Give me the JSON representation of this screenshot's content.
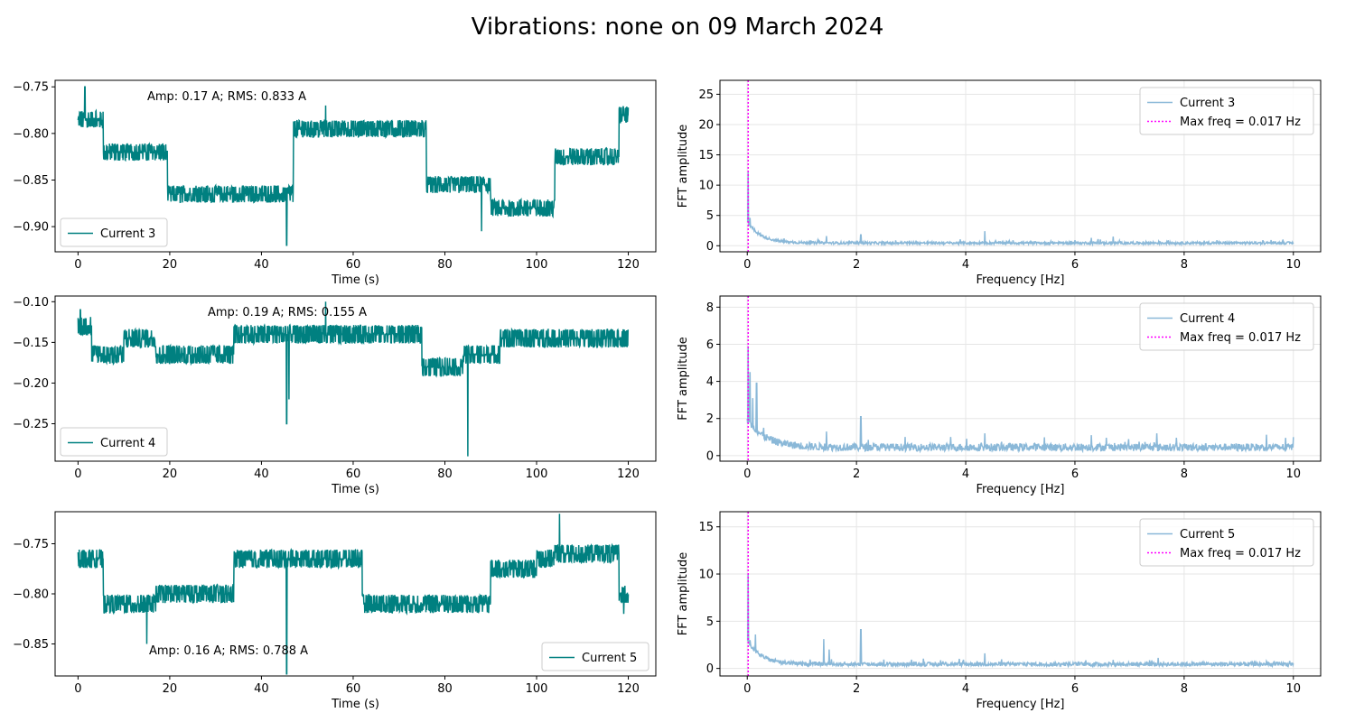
{
  "figure": {
    "title": "Vibrations: none on 09 March 2024",
    "colors": {
      "time_series": "#008080",
      "fft": "#8ab8d8",
      "max_freq": "#ff00ff",
      "grid": "#e6e6e6"
    }
  },
  "chart_data": [
    {
      "type": "line",
      "xlabel": "Time (s)",
      "ylabel": "",
      "xlim": [
        -5,
        126
      ],
      "ylim": [
        -0.927,
        -0.743
      ],
      "xticks": [
        0,
        20,
        40,
        60,
        80,
        100,
        120
      ],
      "yticks": [
        -0.75,
        -0.8,
        -0.85,
        -0.9
      ],
      "ytick_labels": [
        "−0.75",
        "−0.80",
        "−0.85",
        "−0.90"
      ],
      "grid": false,
      "legend": {
        "location": "lower-left",
        "entries": [
          "Current 3"
        ]
      },
      "annotation": "Amp: 0.17 A; RMS: 0.833 A",
      "series": [
        {
          "name": "Current 3",
          "color": "#008080",
          "x_range": [
            0,
            120
          ],
          "levels": [
            [
              0,
              5.5,
              -0.785
            ],
            [
              5.5,
              19.5,
              -0.82
            ],
            [
              19.5,
              47,
              -0.865
            ],
            [
              47,
              76,
              -0.795
            ],
            [
              76,
              90,
              -0.855
            ],
            [
              90,
              104,
              -0.88
            ],
            [
              104,
              118,
              -0.825
            ],
            [
              118,
              120,
              -0.78
            ]
          ],
          "noise": 0.014,
          "spikes": [
            [
              1.5,
              -0.75
            ],
            [
              45.5,
              -0.92
            ],
            [
              54,
              -0.77
            ],
            [
              88,
              -0.905
            ]
          ]
        }
      ]
    },
    {
      "type": "line",
      "xlabel": "Frequency [Hz]",
      "ylabel": "FFT amplitude",
      "xlim": [
        -0.5,
        10.5
      ],
      "ylim": [
        -1.0,
        27.3
      ],
      "xticks": [
        0,
        2,
        4,
        6,
        8,
        10
      ],
      "yticks": [
        0,
        5,
        10,
        15,
        20,
        25
      ],
      "grid": true,
      "legend": {
        "location": "top-right",
        "entries": [
          "Current 3",
          "Max freq = 0.017 Hz"
        ]
      },
      "series": [
        {
          "name": "Current 3",
          "color": "#8ab8d8",
          "x_range": [
            0,
            10
          ],
          "baseline": 0.45,
          "decay": {
            "amplitude": 3.5,
            "rate": 4
          },
          "peaks": [
            [
              0.02,
              12.2
            ],
            [
              0.05,
              4.6
            ],
            [
              0.1,
              3.2
            ],
            [
              0.15,
              1.8
            ],
            [
              1.45,
              1.6
            ],
            [
              2.08,
              1.8
            ],
            [
              4.35,
              2.4
            ],
            [
              6.3,
              1.3
            ],
            [
              6.7,
              1.5
            ],
            [
              8.6,
              0.9
            ]
          ]
        }
      ],
      "vline": {
        "x": 0.017,
        "label": "Max freq = 0.017 Hz",
        "color": "#ff00ff"
      }
    },
    {
      "type": "line",
      "xlabel": "Time (s)",
      "ylabel": "",
      "xlim": [
        -5,
        126
      ],
      "ylim": [
        -0.296,
        -0.093
      ],
      "xticks": [
        0,
        20,
        40,
        60,
        80,
        100,
        120
      ],
      "yticks": [
        -0.1,
        -0.15,
        -0.2,
        -0.25
      ],
      "ytick_labels": [
        "−0.10",
        "−0.15",
        "−0.20",
        "−0.25"
      ],
      "grid": false,
      "legend": {
        "location": "lower-left",
        "entries": [
          "Current 4"
        ]
      },
      "annotation": "Amp: 0.19 A;  RMS: 0.155 A",
      "series": [
        {
          "name": "Current 4",
          "color": "#008080",
          "x_range": [
            0,
            120
          ],
          "levels": [
            [
              0,
              3,
              -0.13
            ],
            [
              3,
              10,
              -0.165
            ],
            [
              10,
              17,
              -0.145
            ],
            [
              17,
              34,
              -0.165
            ],
            [
              34,
              75,
              -0.14
            ],
            [
              75,
              84,
              -0.18
            ],
            [
              84,
              92,
              -0.165
            ],
            [
              92,
              120,
              -0.145
            ]
          ],
          "noise": 0.018,
          "spikes": [
            [
              0.5,
              -0.11
            ],
            [
              45.5,
              -0.25
            ],
            [
              54,
              -0.1
            ],
            [
              85,
              -0.29
            ],
            [
              46,
              -0.22
            ]
          ]
        }
      ]
    },
    {
      "type": "line",
      "xlabel": "Frequency [Hz]",
      "ylabel": "FFT amplitude",
      "xlim": [
        -0.5,
        10.5
      ],
      "ylim": [
        -0.3,
        8.6
      ],
      "xticks": [
        0,
        2,
        4,
        6,
        8,
        10
      ],
      "yticks": [
        0,
        2,
        4,
        6,
        8
      ],
      "grid": true,
      "legend": {
        "location": "top-right",
        "entries": [
          "Current 4",
          "Max freq = 0.017 Hz"
        ]
      },
      "series": [
        {
          "name": "Current 4",
          "color": "#8ab8d8",
          "x_range": [
            0,
            10
          ],
          "baseline": 0.45,
          "decay": {
            "amplitude": 1.5,
            "rate": 3
          },
          "peaks": [
            [
              0.02,
              5.9
            ],
            [
              0.05,
              4.5
            ],
            [
              0.1,
              3.1
            ],
            [
              0.17,
              3.9
            ],
            [
              0.3,
              1.5
            ],
            [
              1.45,
              1.3
            ],
            [
              2.08,
              2.1
            ],
            [
              4.35,
              1.2
            ],
            [
              6.3,
              1.1
            ],
            [
              7.5,
              1.2
            ],
            [
              10.0,
              1.0
            ]
          ]
        }
      ],
      "vline": {
        "x": 0.017,
        "label": "Max freq = 0.017 Hz",
        "color": "#ff00ff"
      }
    },
    {
      "type": "line",
      "xlabel": "Time (s)",
      "ylabel": "",
      "xlim": [
        -5,
        126
      ],
      "ylim": [
        -0.882,
        -0.718
      ],
      "xticks": [
        0,
        20,
        40,
        60,
        80,
        100,
        120
      ],
      "yticks": [
        -0.75,
        -0.8,
        -0.85
      ],
      "ytick_labels": [
        "−0.75",
        "−0.80",
        "−0.85"
      ],
      "grid": false,
      "legend": {
        "location": "lower-right",
        "entries": [
          "Current 5"
        ]
      },
      "annotation": "Amp: 0.16 A; RMS: 0.788 A",
      "series": [
        {
          "name": "Current 5",
          "color": "#008080",
          "x_range": [
            0,
            120
          ],
          "levels": [
            [
              0,
              5.5,
              -0.765
            ],
            [
              5.5,
              17,
              -0.81
            ],
            [
              17,
              34,
              -0.8
            ],
            [
              34,
              62,
              -0.765
            ],
            [
              62,
              90,
              -0.81
            ],
            [
              90,
              100,
              -0.775
            ],
            [
              100,
              104,
              -0.765
            ],
            [
              104,
              118,
              -0.76
            ],
            [
              118,
              120,
              -0.8
            ]
          ],
          "noise": 0.014,
          "spikes": [
            [
              45.5,
              -0.88
            ],
            [
              105,
              -0.72
            ],
            [
              15,
              -0.85
            ],
            [
              119,
              -0.82
            ]
          ]
        }
      ]
    },
    {
      "type": "line",
      "xlabel": "Frequency [Hz]",
      "ylabel": "FFT amplitude",
      "xlim": [
        -0.5,
        10.5
      ],
      "ylim": [
        -0.8,
        16.6
      ],
      "xticks": [
        0,
        2,
        4,
        6,
        8,
        10
      ],
      "yticks": [
        0,
        5,
        10,
        15
      ],
      "grid": true,
      "legend": {
        "location": "top-right",
        "entries": [
          "Current 5",
          "Max freq = 0.017 Hz"
        ]
      },
      "series": [
        {
          "name": "Current 5",
          "color": "#8ab8d8",
          "x_range": [
            0,
            10
          ],
          "baseline": 0.45,
          "decay": {
            "amplitude": 2.5,
            "rate": 4
          },
          "peaks": [
            [
              0.02,
              10.0
            ],
            [
              0.05,
              3.0
            ],
            [
              0.15,
              3.6
            ],
            [
              1.4,
              3.1
            ],
            [
              1.5,
              2.0
            ],
            [
              2.08,
              4.1
            ],
            [
              4.35,
              1.6
            ],
            [
              6.7,
              0.9
            ]
          ]
        }
      ],
      "vline": {
        "x": 0.017,
        "label": "Max freq = 0.017 Hz",
        "color": "#ff00ff"
      }
    }
  ]
}
